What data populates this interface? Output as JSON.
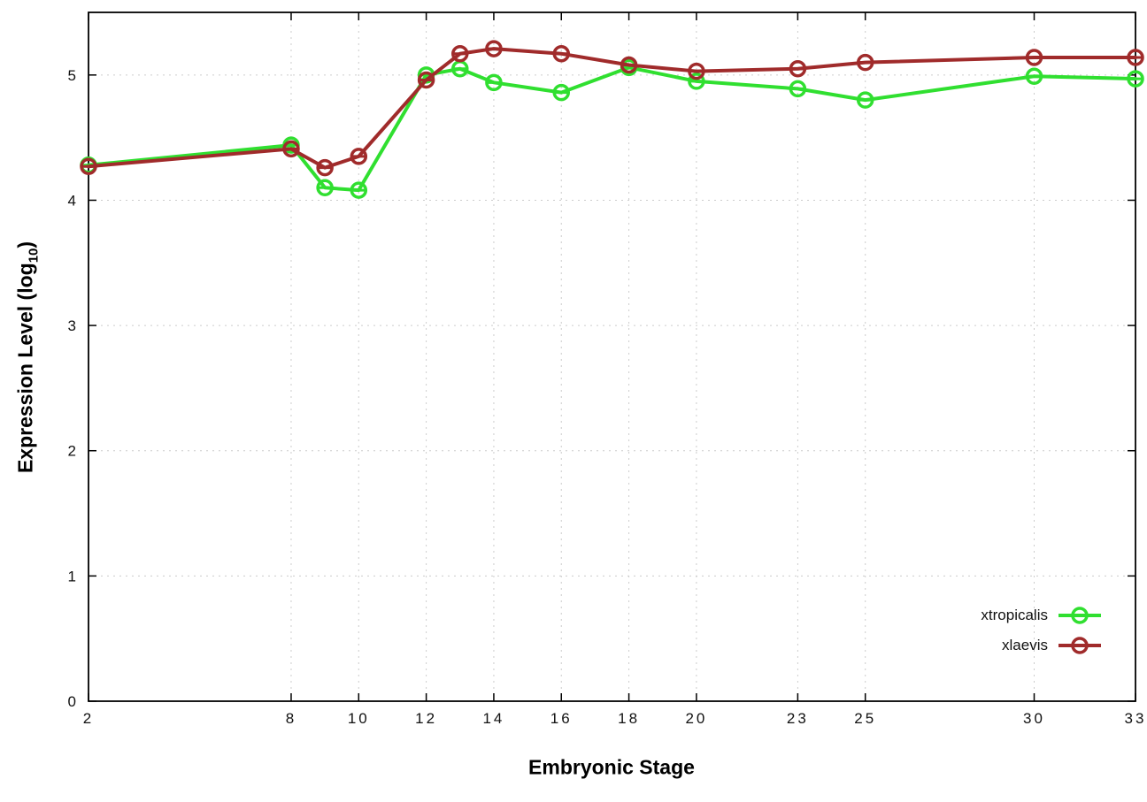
{
  "figure": {
    "background": "#ffffff",
    "axis_color": "#000000",
    "grid_color": "#cccccc"
  },
  "chart_data": {
    "type": "line",
    "title": "",
    "xlabel": "Embryonic Stage",
    "ylabel": "Expression Level (log10)",
    "ylabel_prefix": "Expression Level (log",
    "ylabel_sub": "10",
    "ylabel_suffix": ")",
    "xlim": [
      2,
      33
    ],
    "ylim": [
      0,
      5.5
    ],
    "x_ticks": [
      2,
      8,
      10,
      12,
      14,
      16,
      18,
      20,
      23,
      25,
      30,
      33
    ],
    "y_ticks": [
      0,
      1,
      2,
      3,
      4,
      5
    ],
    "grid": true,
    "legend_position": "bottom-right",
    "marker": "open-circle-with-error-bar",
    "series": [
      {
        "name": "xtropicalis",
        "color": "#30df30",
        "x": [
          2,
          8,
          9,
          10,
          12,
          13,
          14,
          16,
          18,
          20,
          23,
          25,
          30,
          33
        ],
        "y": [
          4.28,
          4.44,
          4.1,
          4.08,
          5.0,
          5.05,
          4.94,
          4.86,
          5.06,
          4.95,
          4.89,
          4.8,
          4.99,
          4.97
        ]
      },
      {
        "name": "xlaevis",
        "color": "#a02b2b",
        "x": [
          2,
          8,
          9,
          10,
          12,
          13,
          14,
          16,
          18,
          20,
          23,
          25,
          30,
          33
        ],
        "y": [
          4.27,
          4.41,
          4.26,
          4.35,
          4.96,
          5.17,
          5.21,
          5.17,
          5.08,
          5.03,
          5.05,
          5.1,
          5.14,
          5.14
        ]
      }
    ]
  }
}
